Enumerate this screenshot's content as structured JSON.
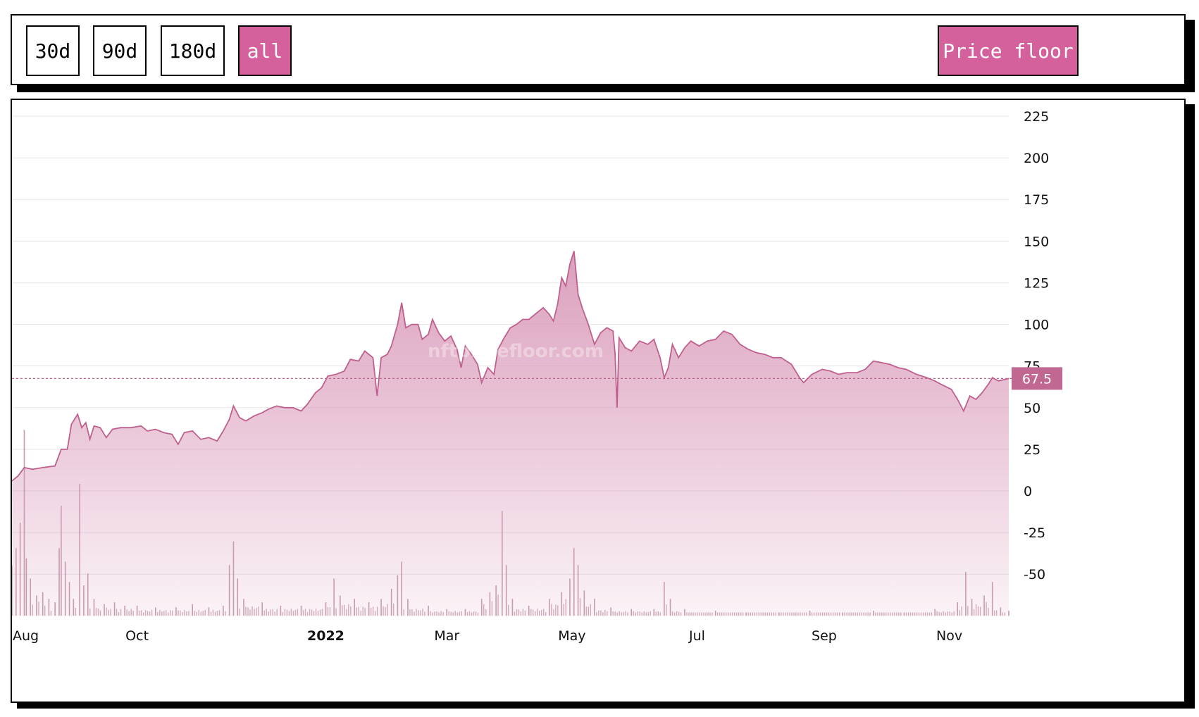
{
  "toolbar": {
    "ranges": [
      {
        "label": "30d",
        "active": false
      },
      {
        "label": "90d",
        "active": false
      },
      {
        "label": "180d",
        "active": false
      },
      {
        "label": "all",
        "active": true
      }
    ],
    "metric_label": "Price floor"
  },
  "colors": {
    "accent": "#d4619b",
    "line": "#c0608e",
    "badge": "#c06892"
  },
  "watermark": "nftpricefloor.com",
  "chart_data": {
    "type": "area",
    "ylim": [
      -75,
      237
    ],
    "y_ticks": [
      225,
      200,
      175,
      150,
      125,
      100,
      75,
      50,
      25,
      0,
      -25,
      -50
    ],
    "x_ticks": [
      {
        "label": "Aug",
        "date": "2021-08-01",
        "bold": false
      },
      {
        "label": "Oct",
        "date": "2021-10-01",
        "bold": false
      },
      {
        "label": "2022",
        "date": "2022-01-01",
        "bold": true
      },
      {
        "label": "Mar",
        "date": "2022-03-01",
        "bold": false
      },
      {
        "label": "May",
        "date": "2022-05-01",
        "bold": false
      },
      {
        "label": "Jul",
        "date": "2022-07-01",
        "bold": false
      },
      {
        "label": "Sep",
        "date": "2022-09-01",
        "bold": false
      },
      {
        "label": "Nov",
        "date": "2022-11-01",
        "bold": false
      }
    ],
    "last_value": 67.5,
    "last_value_label": "67.5",
    "grid": true,
    "series": [
      {
        "values": [
          [
            "2021-08-01",
            6
          ],
          [
            "2021-08-04",
            9
          ],
          [
            "2021-08-07",
            14
          ],
          [
            "2021-08-11",
            13
          ],
          [
            "2021-08-16",
            14
          ],
          [
            "2021-08-22",
            15
          ],
          [
            "2021-08-25",
            25
          ],
          [
            "2021-08-28",
            25
          ],
          [
            "2021-08-30",
            40
          ],
          [
            "2021-09-02",
            46
          ],
          [
            "2021-09-04",
            38
          ],
          [
            "2021-09-06",
            41
          ],
          [
            "2021-09-08",
            31
          ],
          [
            "2021-09-10",
            39
          ],
          [
            "2021-09-13",
            38
          ],
          [
            "2021-09-16",
            32
          ],
          [
            "2021-09-19",
            37
          ],
          [
            "2021-09-23",
            38
          ],
          [
            "2021-09-28",
            38
          ],
          [
            "2021-10-03",
            39
          ],
          [
            "2021-10-06",
            36
          ],
          [
            "2021-10-10",
            37
          ],
          [
            "2021-10-14",
            35
          ],
          [
            "2021-10-18",
            34
          ],
          [
            "2021-10-21",
            28
          ],
          [
            "2021-10-24",
            35
          ],
          [
            "2021-10-28",
            36
          ],
          [
            "2021-11-01",
            31
          ],
          [
            "2021-11-05",
            32
          ],
          [
            "2021-11-09",
            30
          ],
          [
            "2021-11-12",
            36
          ],
          [
            "2021-11-15",
            43
          ],
          [
            "2021-11-17",
            51
          ],
          [
            "2021-11-20",
            44
          ],
          [
            "2021-11-23",
            42
          ],
          [
            "2021-11-27",
            45
          ],
          [
            "2021-12-01",
            47
          ],
          [
            "2021-12-04",
            49
          ],
          [
            "2021-12-08",
            51
          ],
          [
            "2021-12-12",
            50
          ],
          [
            "2021-12-16",
            50
          ],
          [
            "2021-12-20",
            48
          ],
          [
            "2021-12-23",
            52
          ],
          [
            "2021-12-27",
            59
          ],
          [
            "2021-12-30",
            62
          ],
          [
            "2022-01-02",
            69
          ],
          [
            "2022-01-06",
            70
          ],
          [
            "2022-01-10",
            72
          ],
          [
            "2022-01-13",
            79
          ],
          [
            "2022-01-17",
            78
          ],
          [
            "2022-01-20",
            84
          ],
          [
            "2022-01-24",
            80
          ],
          [
            "2022-01-26",
            57
          ],
          [
            "2022-01-28",
            80
          ],
          [
            "2022-01-31",
            82
          ],
          [
            "2022-02-02",
            87
          ],
          [
            "2022-02-05",
            100
          ],
          [
            "2022-02-07",
            113
          ],
          [
            "2022-02-09",
            98
          ],
          [
            "2022-02-12",
            100
          ],
          [
            "2022-02-15",
            100
          ],
          [
            "2022-02-17",
            91
          ],
          [
            "2022-02-20",
            94
          ],
          [
            "2022-02-22",
            103
          ],
          [
            "2022-02-25",
            95
          ],
          [
            "2022-02-28",
            90
          ],
          [
            "2022-03-03",
            93
          ],
          [
            "2022-03-06",
            85
          ],
          [
            "2022-03-08",
            74
          ],
          [
            "2022-03-10",
            87
          ],
          [
            "2022-03-13",
            82
          ],
          [
            "2022-03-16",
            76
          ],
          [
            "2022-03-18",
            65
          ],
          [
            "2022-03-21",
            74
          ],
          [
            "2022-03-24",
            70
          ],
          [
            "2022-03-26",
            85
          ],
          [
            "2022-03-29",
            92
          ],
          [
            "2022-04-01",
            98
          ],
          [
            "2022-04-04",
            100
          ],
          [
            "2022-04-07",
            103
          ],
          [
            "2022-04-10",
            103
          ],
          [
            "2022-04-14",
            107
          ],
          [
            "2022-04-17",
            110
          ],
          [
            "2022-04-20",
            106
          ],
          [
            "2022-04-22",
            102
          ],
          [
            "2022-04-24",
            112
          ],
          [
            "2022-04-26",
            128
          ],
          [
            "2022-04-28",
            123
          ],
          [
            "2022-04-30",
            136
          ],
          [
            "2022-05-02",
            144
          ],
          [
            "2022-05-04",
            118
          ],
          [
            "2022-05-06",
            110
          ],
          [
            "2022-05-09",
            100
          ],
          [
            "2022-05-12",
            88
          ],
          [
            "2022-05-15",
            95
          ],
          [
            "2022-05-18",
            98
          ],
          [
            "2022-05-21",
            96
          ],
          [
            "2022-05-22",
            83
          ],
          [
            "2022-05-23",
            50
          ],
          [
            "2022-05-24",
            92
          ],
          [
            "2022-05-27",
            86
          ],
          [
            "2022-05-30",
            84
          ],
          [
            "2022-06-03",
            90
          ],
          [
            "2022-06-07",
            88
          ],
          [
            "2022-06-10",
            91
          ],
          [
            "2022-06-13",
            80
          ],
          [
            "2022-06-15",
            68
          ],
          [
            "2022-06-17",
            74
          ],
          [
            "2022-06-19",
            88
          ],
          [
            "2022-06-22",
            80
          ],
          [
            "2022-06-25",
            86
          ],
          [
            "2022-06-28",
            90
          ],
          [
            "2022-07-02",
            87
          ],
          [
            "2022-07-06",
            90
          ],
          [
            "2022-07-10",
            91
          ],
          [
            "2022-07-14",
            96
          ],
          [
            "2022-07-18",
            94
          ],
          [
            "2022-07-22",
            88
          ],
          [
            "2022-07-26",
            85
          ],
          [
            "2022-07-30",
            83
          ],
          [
            "2022-08-03",
            82
          ],
          [
            "2022-08-07",
            80
          ],
          [
            "2022-08-11",
            80
          ],
          [
            "2022-08-16",
            76
          ],
          [
            "2022-08-20",
            68
          ],
          [
            "2022-08-22",
            65
          ],
          [
            "2022-08-26",
            70
          ],
          [
            "2022-08-31",
            73
          ],
          [
            "2022-09-04",
            72
          ],
          [
            "2022-09-08",
            70
          ],
          [
            "2022-09-12",
            71
          ],
          [
            "2022-09-17",
            71
          ],
          [
            "2022-09-21",
            73
          ],
          [
            "2022-09-25",
            78
          ],
          [
            "2022-09-29",
            77
          ],
          [
            "2022-10-03",
            76
          ],
          [
            "2022-10-07",
            74
          ],
          [
            "2022-10-11",
            73
          ],
          [
            "2022-10-16",
            70
          ],
          [
            "2022-10-21",
            68
          ],
          [
            "2022-10-25",
            66
          ],
          [
            "2022-10-28",
            64
          ],
          [
            "2022-11-02",
            61
          ],
          [
            "2022-11-05",
            55
          ],
          [
            "2022-11-08",
            48
          ],
          [
            "2022-11-11",
            57
          ],
          [
            "2022-11-14",
            55
          ],
          [
            "2022-11-17",
            59
          ],
          [
            "2022-11-20",
            64
          ],
          [
            "2022-11-22",
            68
          ],
          [
            "2022-11-25",
            66
          ],
          [
            "2022-11-30",
            67.5
          ]
        ]
      }
    ],
    "volume": [
      [
        "2021-08-01",
        30
      ],
      [
        "2021-08-03",
        40
      ],
      [
        "2021-08-05",
        55
      ],
      [
        "2021-08-07",
        110
      ],
      [
        "2021-08-08",
        34
      ],
      [
        "2021-08-10",
        22
      ],
      [
        "2021-08-13",
        12
      ],
      [
        "2021-08-16",
        14
      ],
      [
        "2021-08-19",
        10
      ],
      [
        "2021-08-22",
        8
      ],
      [
        "2021-08-24",
        40
      ],
      [
        "2021-08-25",
        65
      ],
      [
        "2021-08-27",
        32
      ],
      [
        "2021-08-29",
        20
      ],
      [
        "2021-08-31",
        10
      ],
      [
        "2021-09-03",
        78
      ],
      [
        "2021-09-05",
        18
      ],
      [
        "2021-09-07",
        25
      ],
      [
        "2021-09-10",
        10
      ],
      [
        "2021-09-15",
        7
      ],
      [
        "2021-09-20",
        8
      ],
      [
        "2021-09-25",
        6
      ],
      [
        "2021-10-01",
        6
      ],
      [
        "2021-10-10",
        5
      ],
      [
        "2021-10-20",
        5
      ],
      [
        "2021-10-28",
        7
      ],
      [
        "2021-11-05",
        5
      ],
      [
        "2021-11-12",
        6
      ],
      [
        "2021-11-15",
        30
      ],
      [
        "2021-11-17",
        44
      ],
      [
        "2021-11-19",
        22
      ],
      [
        "2021-11-22",
        10
      ],
      [
        "2021-12-01",
        8
      ],
      [
        "2021-12-10",
        6
      ],
      [
        "2021-12-20",
        6
      ],
      [
        "2022-01-01",
        8
      ],
      [
        "2022-01-05",
        22
      ],
      [
        "2022-01-08",
        12
      ],
      [
        "2022-01-15",
        10
      ],
      [
        "2022-01-22",
        8
      ],
      [
        "2022-01-28",
        10
      ],
      [
        "2022-02-02",
        16
      ],
      [
        "2022-02-05",
        24
      ],
      [
        "2022-02-07",
        32
      ],
      [
        "2022-02-10",
        10
      ],
      [
        "2022-02-20",
        6
      ],
      [
        "2022-03-01",
        4
      ],
      [
        "2022-03-10",
        4
      ],
      [
        "2022-03-18",
        10
      ],
      [
        "2022-03-22",
        14
      ],
      [
        "2022-03-25",
        18
      ],
      [
        "2022-03-28",
        62
      ],
      [
        "2022-03-30",
        30
      ],
      [
        "2022-04-02",
        10
      ],
      [
        "2022-04-10",
        6
      ],
      [
        "2022-04-20",
        10
      ],
      [
        "2022-04-26",
        14
      ],
      [
        "2022-04-30",
        22
      ],
      [
        "2022-05-02",
        40
      ],
      [
        "2022-05-04",
        30
      ],
      [
        "2022-05-07",
        15
      ],
      [
        "2022-05-12",
        10
      ],
      [
        "2022-05-20",
        5
      ],
      [
        "2022-05-30",
        4
      ],
      [
        "2022-06-10",
        4
      ],
      [
        "2022-06-15",
        20
      ],
      [
        "2022-06-18",
        10
      ],
      [
        "2022-06-25",
        4
      ],
      [
        "2022-07-10",
        3
      ],
      [
        "2022-07-25",
        2
      ],
      [
        "2022-08-10",
        2
      ],
      [
        "2022-08-25",
        3
      ],
      [
        "2022-09-10",
        2
      ],
      [
        "2022-09-25",
        3
      ],
      [
        "2022-10-10",
        2
      ],
      [
        "2022-10-25",
        4
      ],
      [
        "2022-11-05",
        8
      ],
      [
        "2022-11-09",
        26
      ],
      [
        "2022-11-12",
        10
      ],
      [
        "2022-11-18",
        12
      ],
      [
        "2022-11-22",
        20
      ],
      [
        "2022-11-26",
        5
      ],
      [
        "2022-11-30",
        3
      ]
    ]
  }
}
